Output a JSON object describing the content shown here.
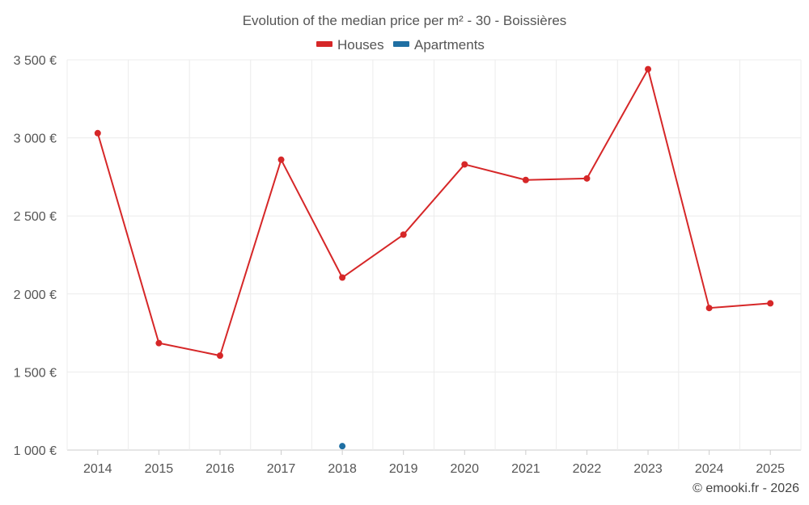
{
  "chart_data": {
    "type": "line",
    "title": "Evolution of the median price per m² - 30 - Boissières",
    "categories": [
      "2014",
      "2015",
      "2016",
      "2017",
      "2018",
      "2019",
      "2020",
      "2021",
      "2022",
      "2023",
      "2024",
      "2025"
    ],
    "series": [
      {
        "name": "Houses",
        "color": "#d62728",
        "values": [
          3030,
          1685,
          1605,
          2860,
          2105,
          2380,
          2830,
          2730,
          2740,
          3440,
          1910,
          1940
        ]
      },
      {
        "name": "Apartments",
        "color": "#1f6fa3",
        "values": [
          null,
          null,
          null,
          null,
          1025,
          null,
          null,
          null,
          null,
          null,
          null,
          null
        ]
      }
    ],
    "ylim": [
      1000,
      3500
    ],
    "yticks": [
      1000,
      1500,
      2000,
      2500,
      3000,
      3500
    ],
    "ytick_labels": [
      "1 000 €",
      "1 500 €",
      "2 000 €",
      "2 500 €",
      "3 000 €",
      "3 500 €"
    ],
    "grid": true,
    "legend": "top-center",
    "xlabel": "",
    "ylabel": ""
  },
  "credit": "© emooki.fr - 2026"
}
